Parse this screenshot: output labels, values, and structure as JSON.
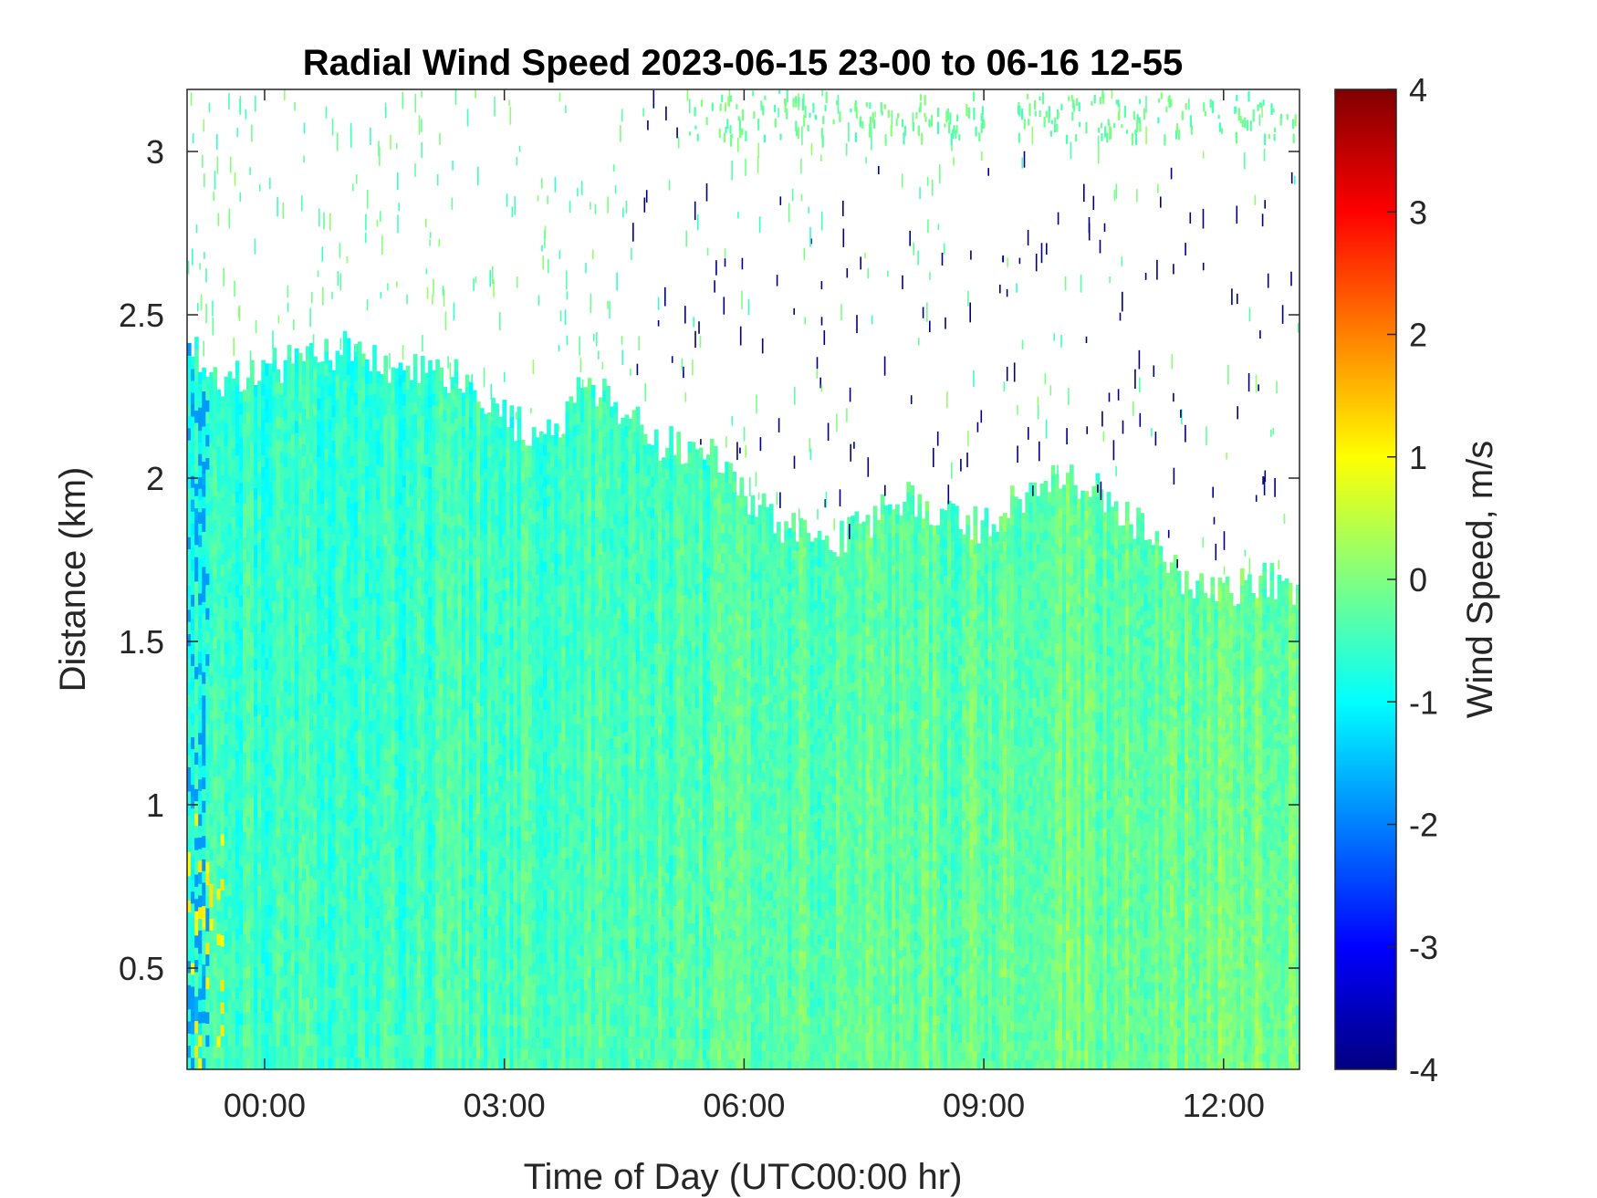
{
  "chart_data": {
    "type": "heatmap",
    "title": "Radial Wind Speed 2023-06-15 23-00 to 06-16 12-55",
    "xlabel": "Time of Day (UTC00:00 hr)",
    "ylabel": "Distance (km)",
    "colorbar_label": "Wind Speed, m/s",
    "colormap": "jet",
    "xlim": [
      -0.97,
      12.95
    ],
    "ylim": [
      0.19,
      3.19
    ],
    "clim": [
      -4,
      4
    ],
    "x_ticks": [
      {
        "value": 0,
        "label": "00:00"
      },
      {
        "value": 3,
        "label": "03:00"
      },
      {
        "value": 6,
        "label": "06:00"
      },
      {
        "value": 9,
        "label": "09:00"
      },
      {
        "value": 12,
        "label": "12:00"
      }
    ],
    "y_ticks": [
      {
        "value": 0.5,
        "label": "0.5"
      },
      {
        "value": 1,
        "label": "1"
      },
      {
        "value": 1.5,
        "label": "1.5"
      },
      {
        "value": 2,
        "label": "2"
      },
      {
        "value": 2.5,
        "label": "2.5"
      },
      {
        "value": 3,
        "label": "3"
      }
    ],
    "colorbar_ticks": [
      {
        "value": 4,
        "label": "4"
      },
      {
        "value": 3,
        "label": "3"
      },
      {
        "value": 2,
        "label": "2"
      },
      {
        "value": 1,
        "label": "1"
      },
      {
        "value": 0,
        "label": "0"
      },
      {
        "value": -1,
        "label": "-1"
      },
      {
        "value": -2,
        "label": "-2"
      },
      {
        "value": -3,
        "label": "-3"
      },
      {
        "value": -4,
        "label": "-4"
      }
    ],
    "data_top_envelope": {
      "time": [
        -0.97,
        -0.5,
        0.0,
        0.5,
        1.0,
        1.5,
        2.0,
        2.5,
        2.9,
        3.3,
        3.7,
        4.0,
        4.5,
        5.0,
        5.5,
        6.0,
        6.5,
        7.0,
        7.5,
        8.0,
        8.5,
        9.0,
        9.5,
        10.0,
        10.5,
        11.0,
        11.5,
        12.0,
        12.5,
        12.95
      ],
      "top_distance_km": [
        2.4,
        2.3,
        2.35,
        2.35,
        2.4,
        2.35,
        2.35,
        2.3,
        2.2,
        2.15,
        2.15,
        2.3,
        2.2,
        2.1,
        2.1,
        1.95,
        1.85,
        1.8,
        1.85,
        1.95,
        1.9,
        1.85,
        1.95,
        2.0,
        1.95,
        1.85,
        1.7,
        1.65,
        1.7,
        1.65
      ]
    },
    "typical_values_m_s": {
      "lower_layer": [
        -1.0,
        0.5
      ],
      "upper_layer": [
        -1.0,
        0.0
      ]
    }
  }
}
